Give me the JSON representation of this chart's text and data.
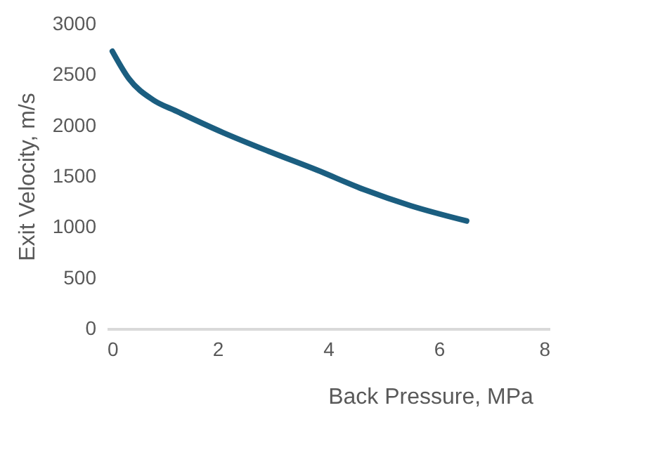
{
  "chart_data": {
    "type": "line",
    "xlabel": "Back Pressure, MPa",
    "ylabel": "Exit Velocity, m/s",
    "x": [
      0.1,
      0.4,
      0.84,
      1.26,
      2.1,
      2.95,
      3.8,
      4.64,
      5.49,
      6.5
    ],
    "series": [
      {
        "color": "#1b5e80",
        "values": [
          2730,
          2460,
          2250,
          2140,
          1930,
          1740,
          1560,
          1370,
          1210,
          1060
        ]
      }
    ],
    "xlim": [
      0,
      8
    ],
    "xticks": [
      0,
      2,
      4,
      6,
      8
    ],
    "ylim": [
      0,
      3000
    ],
    "yticks": [
      0,
      500,
      1000,
      1500,
      2000,
      2500,
      3000
    ],
    "grid": false,
    "marker": "none",
    "line_style": "solid"
  }
}
